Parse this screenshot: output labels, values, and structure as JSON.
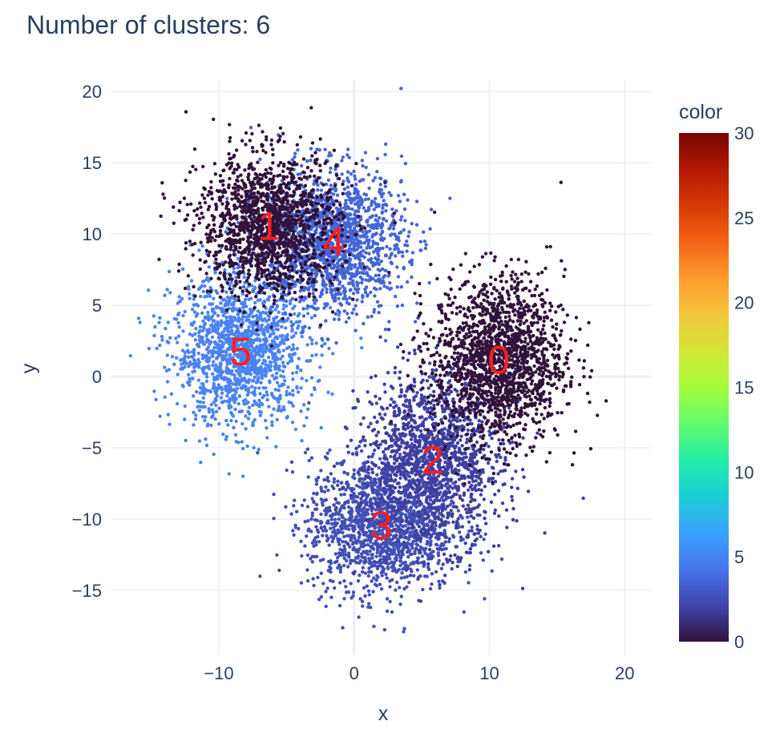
{
  "chart_data": {
    "type": "scatter",
    "title": "Number of clusters: 6",
    "xlabel": "x",
    "ylabel": "y",
    "xlim": [
      -18,
      22
    ],
    "ylim": [
      -19.5,
      20.8
    ],
    "xticks": [
      -10,
      0,
      10,
      20
    ],
    "xtick_labels": [
      "−10",
      "0",
      "10",
      "20"
    ],
    "yticks": [
      -15,
      -10,
      -5,
      0,
      5,
      10,
      15,
      20
    ],
    "ytick_labels": [
      "−15",
      "−10",
      "−5",
      "0",
      "5",
      "10",
      "15",
      "20"
    ],
    "grid": true,
    "colorbar": {
      "title": "color",
      "range": [
        0,
        30
      ],
      "ticks": [
        0,
        5,
        10,
        15,
        20,
        25,
        30
      ],
      "colorscale": [
        "#30123b",
        "#4145ab",
        "#4675ed",
        "#39a2fc",
        "#1bcfd4",
        "#24eca6",
        "#61fc6c",
        "#a4fc3b",
        "#d1e834",
        "#f3c63a",
        "#fe9b2d",
        "#f36315",
        "#d93806",
        "#b11901",
        "#7a0402"
      ]
    },
    "clusters": [
      {
        "label": "0",
        "color_value": 0,
        "color": "#30123b",
        "center": [
          10.7,
          1.2
        ],
        "std": [
          2.4,
          2.9
        ],
        "n": 1700
      },
      {
        "label": "1",
        "color_value": 1,
        "color": "#30123b",
        "center": [
          -6.3,
          10.6
        ],
        "std": [
          2.6,
          2.5
        ],
        "n": 1500
      },
      {
        "label": "2",
        "color_value": 2,
        "color": "#3e3fa0",
        "center": [
          5.8,
          -5.8
        ],
        "std": [
          2.6,
          3.0
        ],
        "n": 1500
      },
      {
        "label": "3",
        "color_value": 3,
        "color": "#4150b6",
        "center": [
          2.0,
          -10.4
        ],
        "std": [
          2.7,
          2.4
        ],
        "n": 1500
      },
      {
        "label": "4",
        "color_value": 4,
        "color": "#4565d6",
        "center": [
          -1.5,
          9.5
        ],
        "std": [
          2.6,
          2.5
        ],
        "n": 1500
      },
      {
        "label": "5",
        "color_value": 5,
        "color": "#4b83f2",
        "center": [
          -8.4,
          1.8
        ],
        "std": [
          2.5,
          2.6
        ],
        "n": 1500
      }
    ]
  }
}
